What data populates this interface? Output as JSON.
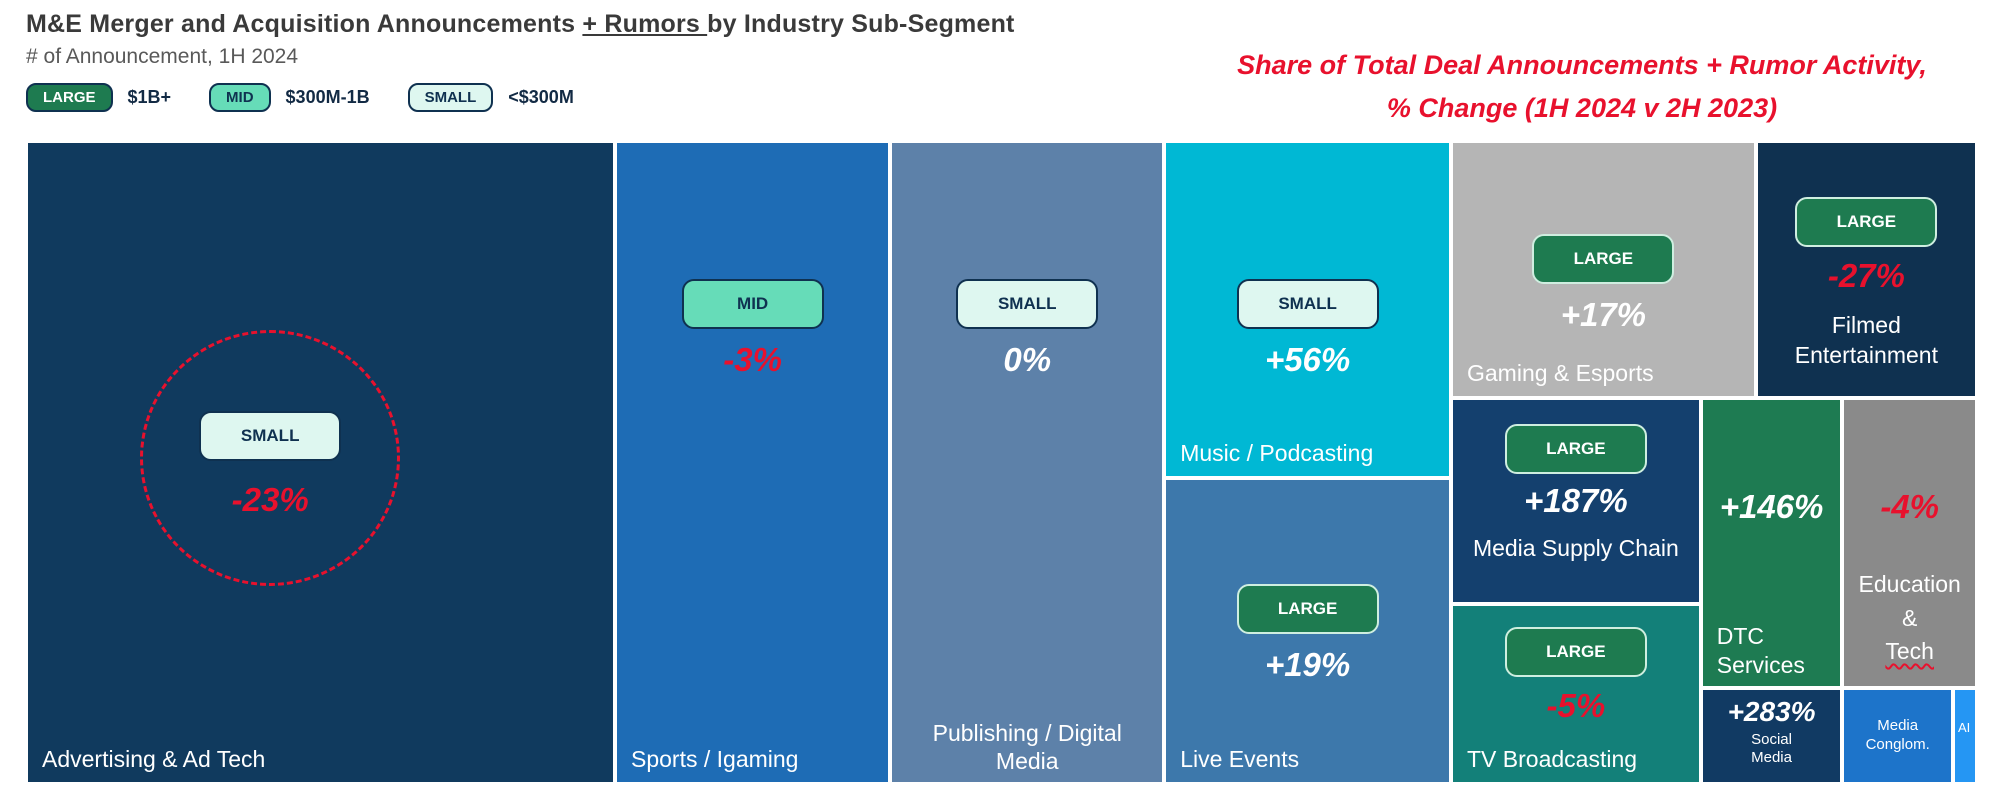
{
  "header": {
    "title_prefix": "M&E Merger and Acquisition Announcements ",
    "title_underlined": "+ Rumors ",
    "title_suffix": "by Industry Sub-Segment",
    "subtitle": "# of Announcement, 1H 2024",
    "annotation_line1": "Share of Total Deal Announcements + Rumor Activity,",
    "annotation_line2": "% Change (1H 2024 v 2H 2023)"
  },
  "colors": {
    "negative_change": "#e8112d",
    "positive_change": "#ffffff",
    "badge_large": "#1e7b50",
    "badge_mid": "#66dcb8",
    "badge_small": "#def7f0",
    "annotation_red": "#e8112d"
  },
  "chart_data": {
    "type": "treemap",
    "title": "M&E Merger and Acquisition Announcements + Rumors by Industry Sub-Segment",
    "subtitle": "# of Announcement, 1H 2024",
    "metric_note": "Share of Total Deal Announcements + Rumor Activity, % Change (1H 2024 v 2H 2023)",
    "size_legend": [
      {
        "label": "LARGE",
        "range": "$1B+"
      },
      {
        "label": "MID",
        "range": "$300M-1B"
      },
      {
        "label": "SMALL",
        "range": "<$300M"
      }
    ],
    "blocks": [
      {
        "name": "Advertising & Ad Tech",
        "deal_size": "SMALL",
        "change": "-23%",
        "direction": "negative",
        "highlighted": true,
        "color": "#103a5e"
      },
      {
        "name": "Sports / Igaming",
        "deal_size": "MID",
        "change": "-3%",
        "direction": "negative",
        "color": "#1e6cb5"
      },
      {
        "name": "Publishing / Digital Media",
        "deal_size": "SMALL",
        "change": "0%",
        "direction": "neutral",
        "color": "#5d81a9"
      },
      {
        "name": "Music / Podcasting",
        "deal_size": "SMALL",
        "change": "+56%",
        "direction": "positive",
        "color": "#00b8d4"
      },
      {
        "name": "Live Events",
        "deal_size": "LARGE",
        "change": "+19%",
        "direction": "positive",
        "color": "#3d78ab"
      },
      {
        "name": "Gaming & Esports",
        "deal_size": "LARGE",
        "change": "+17%",
        "direction": "positive",
        "color": "#b5b5b5"
      },
      {
        "name": "Filmed Entertainment",
        "deal_size": "LARGE",
        "change": "-27%",
        "direction": "negative",
        "color": "#0f3150"
      },
      {
        "name": "Media Supply Chain",
        "deal_size": "LARGE",
        "change": "+187%",
        "direction": "positive",
        "color": "#14406e"
      },
      {
        "name": "DTC Services",
        "change": "+146%",
        "direction": "positive",
        "color": "#1e7b52"
      },
      {
        "name": "Education & Tech",
        "name_lines": {
          "l1": "Education",
          "l2": "&",
          "l3": "Tech"
        },
        "change": "-4%",
        "direction": "negative",
        "color": "#8a8a8a"
      },
      {
        "name": "TV Broadcasting",
        "deal_size": "LARGE",
        "change": "-5%",
        "direction": "negative",
        "color": "#138079"
      },
      {
        "name": "Social Media",
        "change": "+283%",
        "direction": "positive",
        "color": "#113a63"
      },
      {
        "name": "Media Conglom.",
        "color": "#1d74ca"
      },
      {
        "name": "AI",
        "color": "#2596f3"
      }
    ]
  }
}
